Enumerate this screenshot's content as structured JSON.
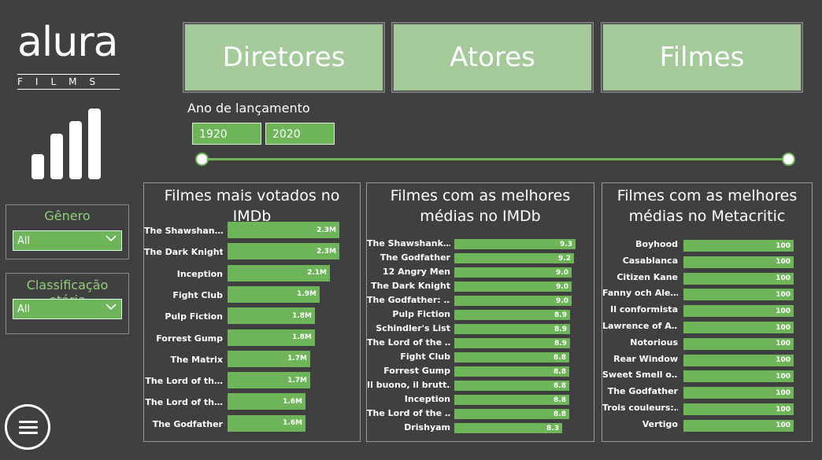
{
  "logo": {
    "word": "alura",
    "sub": "FILMS"
  },
  "nav": [
    {
      "label": "Diretores"
    },
    {
      "label": "Atores"
    },
    {
      "label": "Filmes"
    }
  ],
  "filters": {
    "genre": {
      "title": "Gênero",
      "value": "All"
    },
    "rating": {
      "title": "Classificação etária",
      "value": "All"
    }
  },
  "year": {
    "label": "Ano de lançamento",
    "from": "1920",
    "to": "2020"
  },
  "colors": {
    "accent": "#6db558",
    "nav_bg": "#a3ca98",
    "background": "#404040"
  },
  "charts": [
    {
      "title": "Filmes mais votados no IMDb",
      "max": 2.3,
      "rows": [
        {
          "label": "The Shawshan…",
          "value": 2.3,
          "display": "2.3M"
        },
        {
          "label": "The Dark Knight",
          "value": 2.3,
          "display": "2.3M"
        },
        {
          "label": "Inception",
          "value": 2.1,
          "display": "2.1M"
        },
        {
          "label": "Fight Club",
          "value": 1.9,
          "display": "1.9M"
        },
        {
          "label": "Pulp Fiction",
          "value": 1.8,
          "display": "1.8M"
        },
        {
          "label": "Forrest Gump",
          "value": 1.8,
          "display": "1.8M"
        },
        {
          "label": "The Matrix",
          "value": 1.7,
          "display": "1.7M"
        },
        {
          "label": "The Lord of th…",
          "value": 1.7,
          "display": "1.7M"
        },
        {
          "label": "The Lord of th…",
          "value": 1.6,
          "display": "1.6M"
        },
        {
          "label": "The Godfather",
          "value": 1.6,
          "display": "1.6M"
        }
      ]
    },
    {
      "title": "Filmes com as melhores médias no IMDb",
      "max": 9.3,
      "rows": [
        {
          "label": "The Shawshank…",
          "value": 9.3,
          "display": "9.3"
        },
        {
          "label": "The Godfather",
          "value": 9.2,
          "display": "9.2"
        },
        {
          "label": "12 Angry Men",
          "value": 9.0,
          "display": "9.0"
        },
        {
          "label": "The Dark Knight",
          "value": 9.0,
          "display": "9.0"
        },
        {
          "label": "The Godfather: …",
          "value": 9.0,
          "display": "9.0"
        },
        {
          "label": "Pulp Fiction",
          "value": 8.9,
          "display": "8.9"
        },
        {
          "label": "Schindler's List",
          "value": 8.9,
          "display": "8.9"
        },
        {
          "label": "The Lord of the …",
          "value": 8.9,
          "display": "8.9"
        },
        {
          "label": "Fight Club",
          "value": 8.8,
          "display": "8.8"
        },
        {
          "label": "Forrest Gump",
          "value": 8.8,
          "display": "8.8"
        },
        {
          "label": "Il buono, il brutt…",
          "value": 8.8,
          "display": "8.8"
        },
        {
          "label": "Inception",
          "value": 8.8,
          "display": "8.8"
        },
        {
          "label": "The Lord of the …",
          "value": 8.8,
          "display": "8.8"
        },
        {
          "label": "Drishyam",
          "value": 8.3,
          "display": "8.3"
        }
      ]
    },
    {
      "title": "Filmes com as melhores médias no Metacritic",
      "max": 100,
      "rows": [
        {
          "label": "Boyhood",
          "value": 100,
          "display": "100"
        },
        {
          "label": "Casablanca",
          "value": 100,
          "display": "100"
        },
        {
          "label": "Citizen Kane",
          "value": 100,
          "display": "100"
        },
        {
          "label": "Fanny och Ale…",
          "value": 100,
          "display": "100"
        },
        {
          "label": "Il conformista",
          "value": 100,
          "display": "100"
        },
        {
          "label": "Lawrence of A…",
          "value": 100,
          "display": "100"
        },
        {
          "label": "Notorious",
          "value": 100,
          "display": "100"
        },
        {
          "label": "Rear Window",
          "value": 100,
          "display": "100"
        },
        {
          "label": "Sweet Smell o…",
          "value": 100,
          "display": "100"
        },
        {
          "label": "The Godfather",
          "value": 100,
          "display": "100"
        },
        {
          "label": "Trois couleurs:…",
          "value": 100,
          "display": "100"
        },
        {
          "label": "Vertigo",
          "value": 100,
          "display": "100"
        }
      ]
    }
  ]
}
